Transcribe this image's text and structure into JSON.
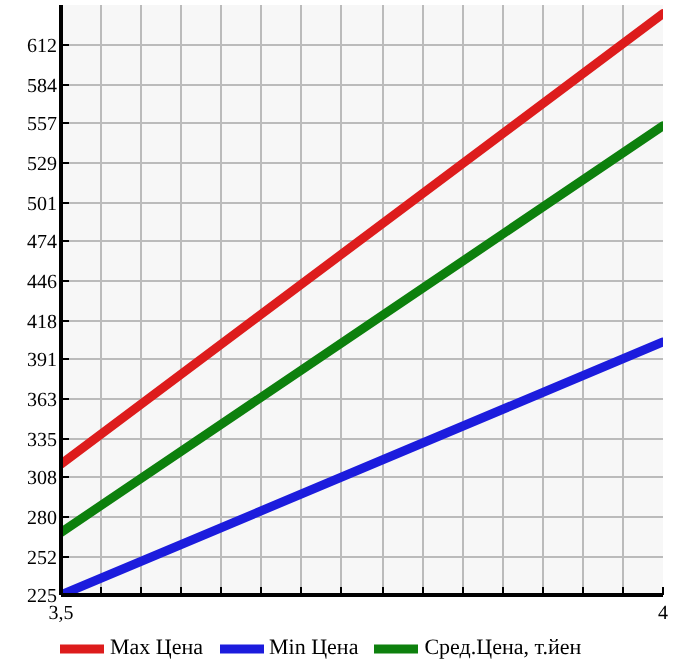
{
  "chart_data": {
    "type": "line",
    "x": [
      3.5,
      4
    ],
    "series": [
      {
        "name": "Max Цена",
        "color": "#dd1c1c",
        "values": [
          317,
          634
        ]
      },
      {
        "name": "Min Цена",
        "color": "#1c1cdd",
        "values": [
          225,
          403
        ]
      },
      {
        "name": "Сред.Цена, т.йен",
        "color": "#0d800d",
        "values": [
          269,
          555
        ]
      }
    ],
    "xlim": [
      3.5,
      4
    ],
    "ylim": [
      225,
      640
    ],
    "xticks": [
      {
        "value": 3.5,
        "label": "3,5"
      },
      {
        "value": 3.5333,
        "label": null
      },
      {
        "value": 3.5667,
        "label": null
      },
      {
        "value": 3.6,
        "label": null
      },
      {
        "value": 3.6333,
        "label": null
      },
      {
        "value": 3.6667,
        "label": null
      },
      {
        "value": 3.7,
        "label": null
      },
      {
        "value": 3.7333,
        "label": null
      },
      {
        "value": 3.7667,
        "label": null
      },
      {
        "value": 3.8,
        "label": null
      },
      {
        "value": 3.8333,
        "label": null
      },
      {
        "value": 3.8667,
        "label": null
      },
      {
        "value": 3.9,
        "label": null
      },
      {
        "value": 3.9333,
        "label": null
      },
      {
        "value": 3.9667,
        "label": null
      },
      4
    ],
    "yticks": [
      225,
      252,
      280,
      308,
      335,
      363,
      391,
      418,
      446,
      474,
      501,
      529,
      557,
      584,
      612
    ],
    "grid": true,
    "legend": "bottom",
    "marker": "none",
    "line_style": "solid"
  }
}
